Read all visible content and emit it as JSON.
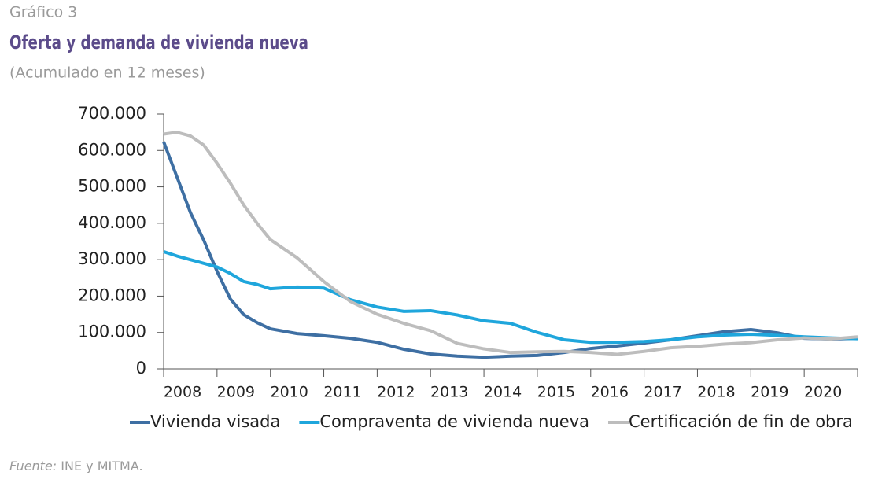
{
  "chart_data": {
    "type": "line",
    "label": "Gráfico 3",
    "title": "Oferta y demanda de vivienda nueva",
    "subtitle": "(Acumulado en 12 meses)",
    "source": {
      "label": "Fuente:",
      "text": "INE y MITMA."
    },
    "x": [
      2008,
      2008.25,
      2008.5,
      2008.75,
      2009,
      2009.25,
      2009.5,
      2009.75,
      2010,
      2010.5,
      2011,
      2011.5,
      2012,
      2012.5,
      2013,
      2013.5,
      2014,
      2014.5,
      2015,
      2015.5,
      2016,
      2016.5,
      2017,
      2017.5,
      2018,
      2018.5,
      2019,
      2019.5,
      2020,
      2020.5,
      2021
    ],
    "series": [
      {
        "name": "Vivienda visada",
        "color": "#3e6fa3",
        "values": [
          624000,
          527000,
          430000,
          354000,
          268000,
          192000,
          149000,
          127000,
          110000,
          97000,
          91000,
          84000,
          73000,
          54000,
          41000,
          35000,
          32000,
          35000,
          37000,
          45000,
          56000,
          63000,
          71000,
          80000,
          91000,
          102000,
          108000,
          99000,
          84000,
          82000,
          84000
        ]
      },
      {
        "name": "Compraventa de vivienda nueva",
        "color": "#1fa6dc",
        "values": [
          322000,
          310000,
          300000,
          290000,
          280000,
          262000,
          240000,
          232000,
          220000,
          225000,
          222000,
          190000,
          170000,
          158000,
          160000,
          148000,
          132000,
          125000,
          100000,
          80000,
          73000,
          73000,
          75000,
          80000,
          88000,
          93000,
          95000,
          92000,
          88000,
          85000,
          83000
        ]
      },
      {
        "name": "Certificación de fin de obra",
        "color": "#bdbdbd",
        "values": [
          645000,
          650000,
          640000,
          615000,
          565000,
          510000,
          450000,
          400000,
          355000,
          305000,
          240000,
          185000,
          150000,
          125000,
          105000,
          70000,
          55000,
          45000,
          47000,
          48000,
          45000,
          40000,
          48000,
          58000,
          62000,
          68000,
          72000,
          80000,
          85000,
          82000,
          88000
        ]
      }
    ],
    "xlim": [
      2008,
      2021
    ],
    "xticks": [
      2008,
      2009,
      2010,
      2011,
      2012,
      2013,
      2014,
      2015,
      2016,
      2017,
      2018,
      2019,
      2020
    ],
    "ylim": [
      0,
      700000
    ],
    "yticks": [
      0,
      {
        "value": 100000,
        "label": "100.000"
      },
      {
        "value": 200000,
        "label": "200.000"
      },
      {
        "value": 300000,
        "label": "300.000"
      },
      {
        "value": 400000,
        "label": "400.000"
      },
      {
        "value": 500000,
        "label": "500.000"
      },
      {
        "value": 600000,
        "label": "600.000"
      },
      {
        "value": 700000,
        "label": "700.000"
      }
    ],
    "grid": false,
    "legend": "bottom"
  }
}
